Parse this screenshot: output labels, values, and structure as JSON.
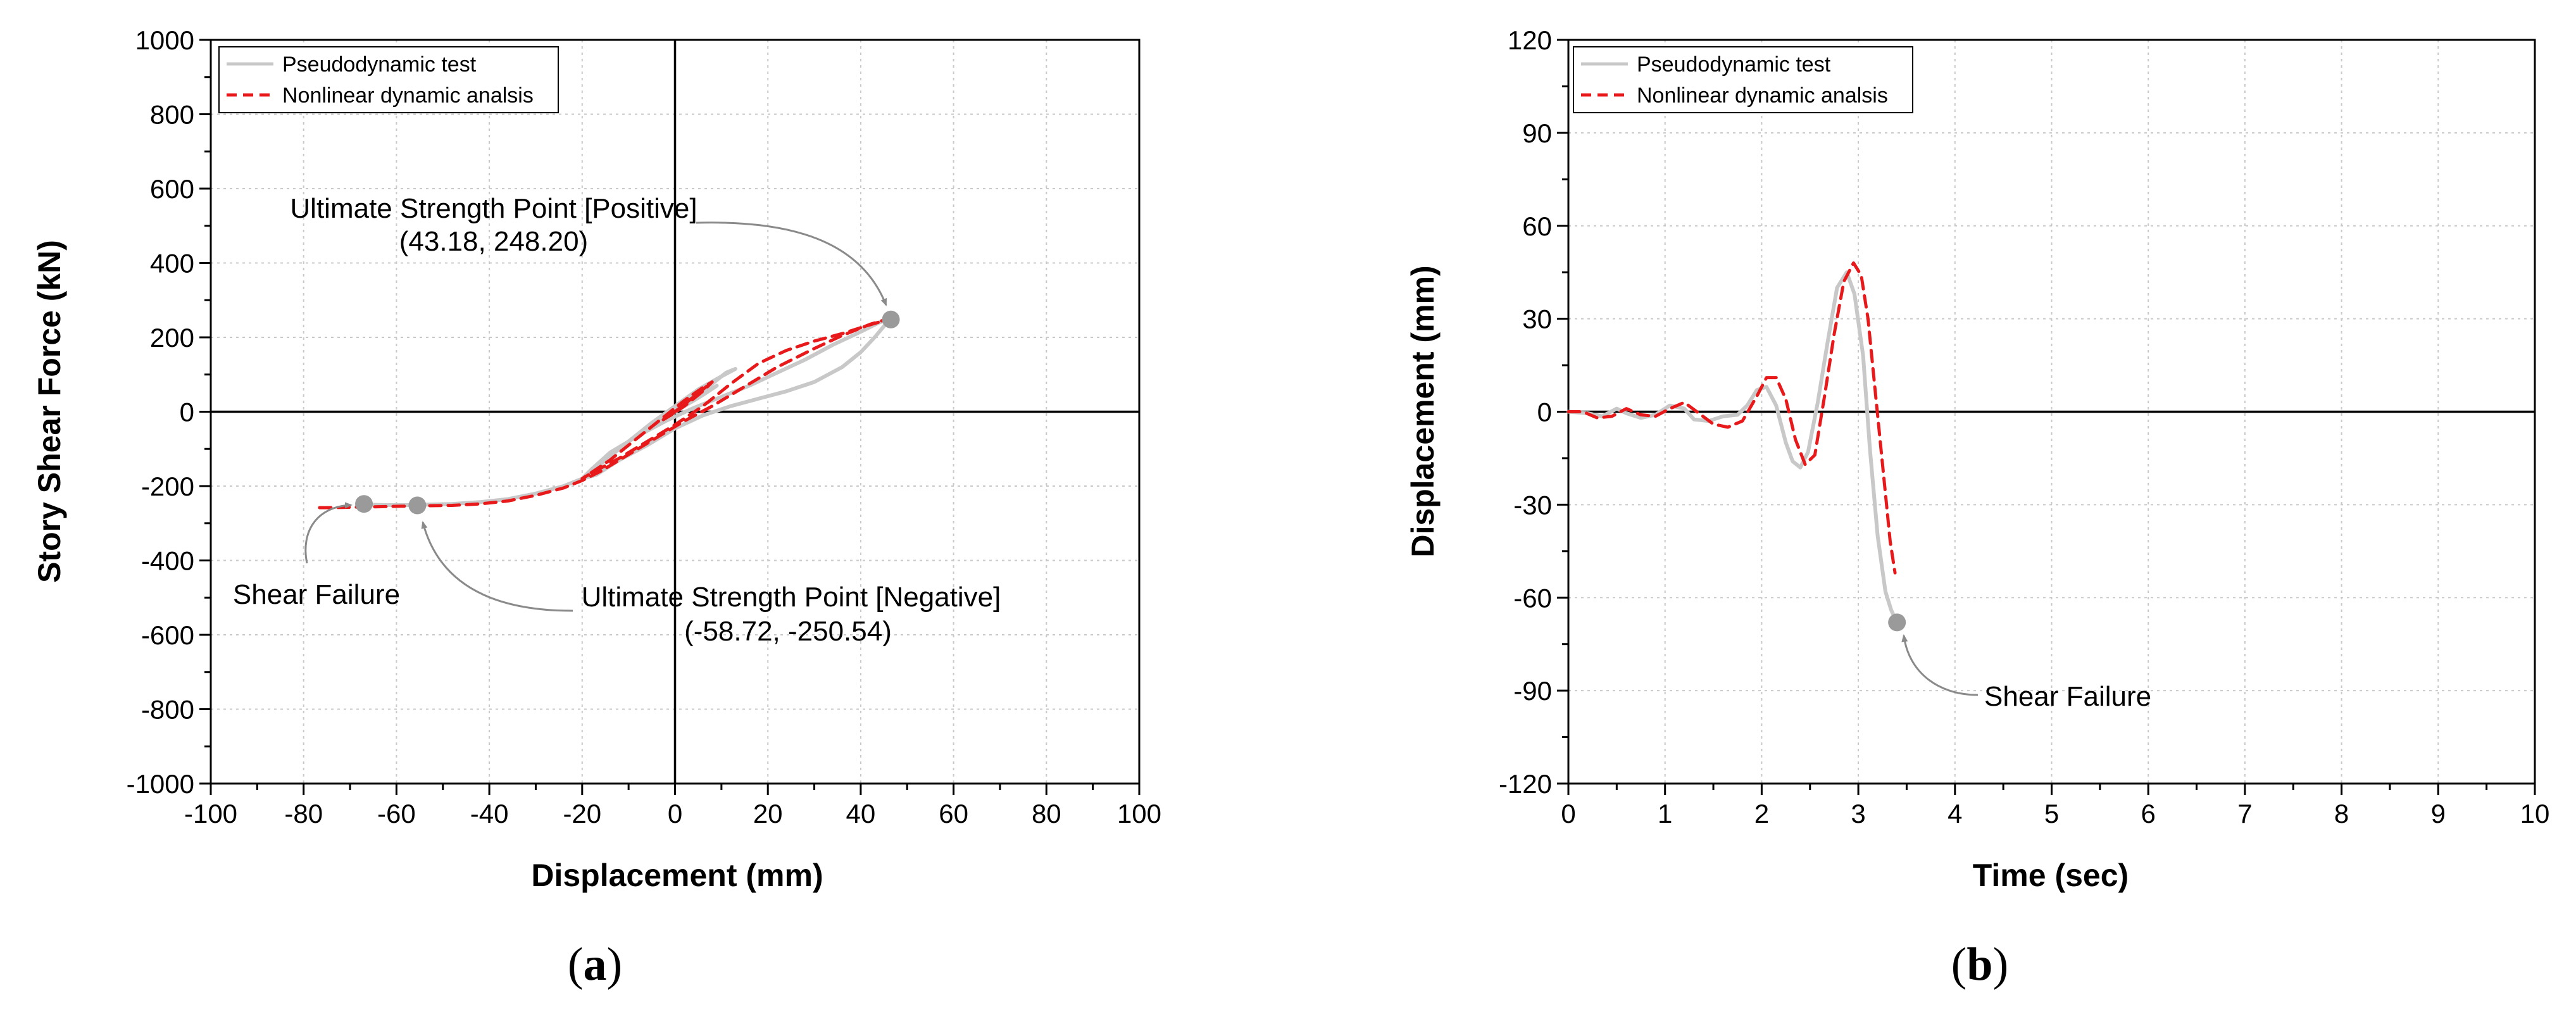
{
  "chart_data": [
    {
      "type": "line",
      "panel_label_open": "(",
      "panel_label_letter": "a",
      "panel_label_close": ")",
      "xlabel": "Displacement (mm)",
      "ylabel": "Story Shear Force (kN)",
      "xlim": [
        -100,
        100
      ],
      "ylim": [
        -1000,
        1000
      ],
      "xticks": [
        -100,
        -80,
        -60,
        -40,
        -20,
        0,
        20,
        40,
        60,
        80,
        100
      ],
      "yticks": [
        -1000,
        -800,
        -600,
        -400,
        -200,
        0,
        200,
        400,
        600,
        800,
        1000
      ],
      "grid": true,
      "legend_position": "top-left",
      "series": [
        {
          "name": "Pseudodynamic test",
          "color": "#c8c8c8",
          "style": "solid",
          "x": [
            0,
            4,
            7,
            9,
            6,
            2,
            -1,
            1,
            4,
            8,
            10,
            8,
            4,
            -1,
            -4,
            -1,
            3,
            8,
            11,
            13,
            10,
            5,
            0,
            -5,
            -10,
            -14,
            -18,
            -20,
            -17,
            -12,
            -6,
            0,
            6,
            12,
            18,
            24,
            30,
            36,
            40,
            43,
            45,
            46,
            44,
            40,
            34,
            28,
            22,
            16,
            10,
            4,
            -2,
            -8,
            -14,
            -18,
            -20,
            -24,
            -30,
            -36,
            -42,
            -48,
            -54,
            -58,
            -62,
            -66,
            -67
          ],
          "y": [
            0,
            30,
            55,
            70,
            45,
            15,
            -5,
            15,
            45,
            80,
            95,
            80,
            50,
            5,
            -30,
            -10,
            30,
            75,
            105,
            115,
            95,
            60,
            15,
            -30,
            -80,
            -120,
            -160,
            -180,
            -170,
            -130,
            -90,
            -45,
            -10,
            15,
            35,
            55,
            80,
            120,
            160,
            200,
            230,
            248,
            240,
            215,
            180,
            140,
            105,
            70,
            40,
            10,
            -25,
            -65,
            -110,
            -155,
            -180,
            -200,
            -220,
            -235,
            -243,
            -248,
            -250,
            -251,
            -251,
            -250,
            -248
          ]
        },
        {
          "name": "Nonlinear dynamic analsis",
          "color": "#e8191b",
          "style": "dashed",
          "x": [
            0,
            3,
            6,
            5,
            2,
            -1,
            1,
            4,
            7,
            6,
            3,
            0,
            -3,
            -1,
            2,
            6,
            8,
            6,
            2,
            -3,
            -8,
            -14,
            -20,
            -18,
            -12,
            -6,
            0,
            6,
            12,
            18,
            24,
            30,
            36,
            41,
            45,
            46,
            42,
            36,
            30,
            22,
            14,
            8,
            2,
            -4,
            -10,
            -16,
            -20,
            -24,
            -30,
            -36,
            -42,
            -48,
            -54,
            -58,
            -62,
            -66,
            -70,
            -75,
            -77
          ],
          "y": [
            0,
            30,
            55,
            45,
            15,
            -10,
            10,
            40,
            70,
            60,
            30,
            0,
            -25,
            -10,
            20,
            55,
            80,
            65,
            30,
            -20,
            -70,
            -130,
            -180,
            -165,
            -125,
            -80,
            -35,
            15,
            75,
            130,
            165,
            190,
            210,
            230,
            245,
            250,
            235,
            205,
            170,
            120,
            60,
            15,
            -25,
            -70,
            -115,
            -160,
            -185,
            -205,
            -225,
            -240,
            -248,
            -252,
            -253,
            -254,
            -255,
            -256,
            -257,
            -258,
            -258
          ]
        }
      ],
      "markers": [
        {
          "x": 46.5,
          "y": 248
        },
        {
          "x": -67,
          "y": -248
        },
        {
          "x": -55.5,
          "y": -252
        }
      ],
      "annotations": [
        {
          "line1": "Ultimate Strength Point [Positive]",
          "line2": "(43.18, 248.20)"
        },
        {
          "line1": "Ultimate Strength Point [Negative]",
          "line2": "(-58.72, -250.54)"
        },
        {
          "line1": "Shear Failure"
        }
      ]
    },
    {
      "type": "line",
      "panel_label_open": "(",
      "panel_label_letter": "b",
      "panel_label_close": ")",
      "xlabel": "Time (sec)",
      "ylabel": "Displacement (mm)",
      "xlim": [
        0,
        10
      ],
      "ylim": [
        -120,
        120
      ],
      "xticks": [
        0,
        1,
        2,
        3,
        4,
        5,
        6,
        7,
        8,
        9,
        10
      ],
      "yticks": [
        -120,
        -90,
        -60,
        -30,
        0,
        30,
        60,
        90,
        120
      ],
      "grid": true,
      "legend_position": "top-left",
      "series": [
        {
          "name": "Pseudodynamic test",
          "color": "#c8c8c8",
          "style": "solid",
          "x": [
            0,
            0.2,
            0.35,
            0.5,
            0.6,
            0.75,
            0.9,
            1.05,
            1.2,
            1.3,
            1.45,
            1.6,
            1.75,
            1.85,
            1.95,
            2.05,
            2.15,
            2.25,
            2.32,
            2.4,
            2.48,
            2.58,
            2.68,
            2.78,
            2.88,
            2.96,
            3.05,
            3.12,
            3.2,
            3.28,
            3.34,
            3.4
          ],
          "y": [
            0,
            -0.5,
            -1.5,
            1,
            -0.5,
            -2,
            -1,
            2,
            1,
            -2.5,
            -3,
            -1.5,
            -1,
            2,
            7,
            8,
            2,
            -10,
            -16,
            -18,
            -13,
            3,
            22,
            40,
            45,
            38,
            18,
            -12,
            -40,
            -58,
            -64,
            -68
          ]
        },
        {
          "name": "Nonlinear dynamic analsis",
          "color": "#e8191b",
          "style": "dashed",
          "x": [
            0,
            0.15,
            0.3,
            0.45,
            0.6,
            0.75,
            0.9,
            1.05,
            1.2,
            1.35,
            1.5,
            1.65,
            1.8,
            1.95,
            2.05,
            2.15,
            2.25,
            2.35,
            2.45,
            2.55,
            2.65,
            2.75,
            2.85,
            2.95,
            3.03,
            3.1,
            3.18,
            3.26,
            3.33,
            3.38
          ],
          "y": [
            0,
            0,
            -2,
            -1.5,
            1,
            -1,
            -1.5,
            1,
            3,
            -0.5,
            -4,
            -5,
            -3,
            5,
            11,
            11,
            4,
            -9,
            -17,
            -14,
            5,
            25,
            42,
            48,
            44,
            30,
            5,
            -20,
            -42,
            -52
          ]
        }
      ],
      "markers": [
        {
          "x": 3.4,
          "y": -68
        }
      ],
      "annotations": [
        {
          "line1": "Shear Failure"
        }
      ]
    }
  ]
}
